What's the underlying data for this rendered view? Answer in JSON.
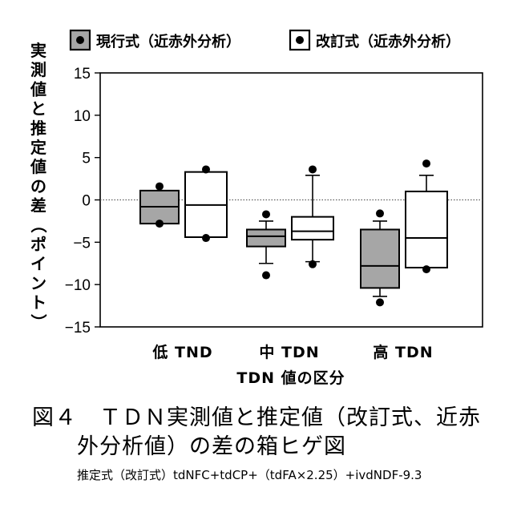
{
  "chart_data": {
    "type": "box",
    "ylabel": "実測値と推定値の差（ポイント）",
    "xlabel": "TDN 値の区分",
    "ylim": [
      -15,
      15
    ],
    "yticks": [
      15,
      10,
      5,
      0,
      -5,
      -10,
      -15
    ],
    "reference_line": 0,
    "categories": [
      "低 TND",
      "中 TDN",
      "高 TDN"
    ],
    "legend_position": "top",
    "series": [
      {
        "name": "現行式（近赤外分析）",
        "fill": "#a6a6a6",
        "boxes": [
          {
            "whisker_low": null,
            "q1": -2.8,
            "median": -0.8,
            "q3": 1.1,
            "whisker_high": null,
            "outliers": [
              1.6,
              -2.8
            ]
          },
          {
            "whisker_low": -7.5,
            "q1": -5.5,
            "median": -4.3,
            "q3": -3.5,
            "whisker_high": -2.5,
            "outliers": [
              -1.7,
              -8.9
            ]
          },
          {
            "whisker_low": -11.4,
            "q1": -10.4,
            "median": -7.8,
            "q3": -3.5,
            "whisker_high": -2.5,
            "outliers": [
              -1.6,
              -12.1
            ]
          }
        ]
      },
      {
        "name": "改訂式（近赤外分析）",
        "fill": "#ffffff",
        "boxes": [
          {
            "whisker_low": null,
            "q1": -4.4,
            "median": -0.6,
            "q3": 3.3,
            "whisker_high": null,
            "outliers": [
              3.6,
              -4.5
            ]
          },
          {
            "whisker_low": -7.3,
            "q1": -4.7,
            "median": -3.7,
            "q3": -2.0,
            "whisker_high": 2.9,
            "outliers": [
              3.6,
              -7.6
            ]
          },
          {
            "whisker_low": -8.0,
            "q1": -8.0,
            "median": -4.5,
            "q3": 1.0,
            "whisker_high": 2.9,
            "outliers": [
              4.3,
              -8.2
            ]
          }
        ]
      }
    ]
  },
  "caption": {
    "line1": "図４　ＴＤＮ実測値と推定値（改訂式、近赤",
    "line2": "外分析値）の差の箱ヒゲ図",
    "formula": "推定式（改訂式）tdNFC+tdCP+（tdFA×2.25）+ivdNDF-9.3"
  }
}
